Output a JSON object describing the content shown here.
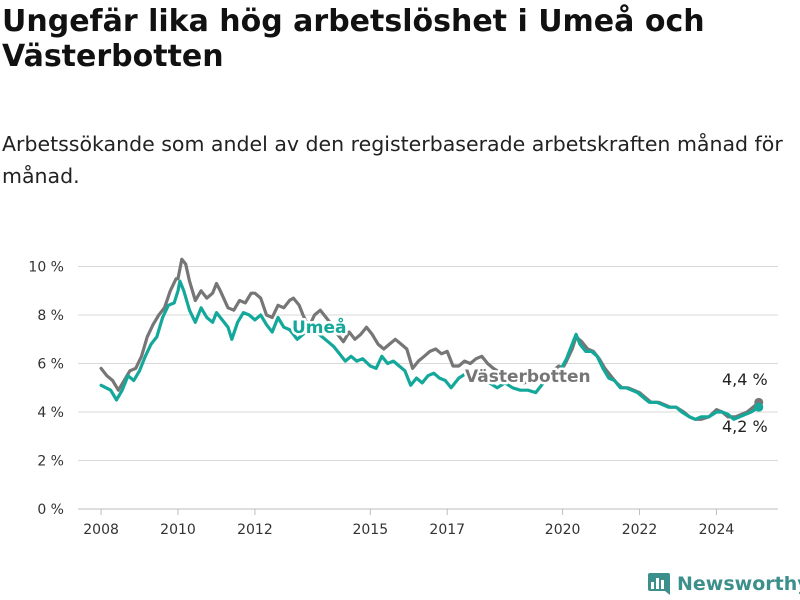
{
  "title": "Ungefär lika hög arbetslöshet i Umeå och Västerbotten",
  "subtitle": "Arbetssökande som andel av den registerbaserade arbetskraften månad för månad.",
  "brand": {
    "name": "Newsworthy",
    "icon": "bar-chart-logo-icon"
  },
  "colors": {
    "umea": "#14a89b",
    "vasterbotten": "#767676",
    "grid": "#d9d9d9"
  },
  "chart_data": {
    "type": "line",
    "x_ticks": [
      "2008",
      "2010",
      "2012",
      "2015",
      "2017",
      "2020",
      "2022",
      "2024"
    ],
    "y_ticks": [
      "0 %",
      "2 %",
      "4 %",
      "6 %",
      "8 %",
      "10 %"
    ],
    "ylim": [
      0,
      10.6
    ],
    "grid": true,
    "series": [
      {
        "name": "Umeå",
        "end_label": "4,2 %",
        "points": [
          [
            2008.0,
            5.1
          ],
          [
            2008.25,
            4.9
          ],
          [
            2008.4,
            4.5
          ],
          [
            2008.55,
            4.9
          ],
          [
            2008.7,
            5.5
          ],
          [
            2008.85,
            5.3
          ],
          [
            2009.0,
            5.7
          ],
          [
            2009.15,
            6.3
          ],
          [
            2009.3,
            6.8
          ],
          [
            2009.45,
            7.1
          ],
          [
            2009.6,
            7.9
          ],
          [
            2009.75,
            8.4
          ],
          [
            2009.9,
            8.5
          ],
          [
            2010.0,
            9.0
          ],
          [
            2010.05,
            9.4
          ],
          [
            2010.15,
            9.0
          ],
          [
            2010.3,
            8.2
          ],
          [
            2010.45,
            7.7
          ],
          [
            2010.6,
            8.3
          ],
          [
            2010.75,
            7.9
          ],
          [
            2010.9,
            7.7
          ],
          [
            2011.0,
            8.1
          ],
          [
            2011.15,
            7.8
          ],
          [
            2011.3,
            7.5
          ],
          [
            2011.4,
            7.0
          ],
          [
            2011.55,
            7.7
          ],
          [
            2011.7,
            8.1
          ],
          [
            2011.85,
            8.0
          ],
          [
            2012.0,
            7.8
          ],
          [
            2012.15,
            8.0
          ],
          [
            2012.3,
            7.6
          ],
          [
            2012.45,
            7.3
          ],
          [
            2012.6,
            7.9
          ],
          [
            2012.75,
            7.5
          ],
          [
            2012.9,
            7.4
          ],
          [
            2013.0,
            7.2
          ],
          [
            2013.1,
            7.0
          ],
          [
            2013.25,
            7.2
          ],
          [
            2013.45,
            7.6
          ],
          [
            2013.6,
            7.3
          ],
          [
            2013.75,
            7.1
          ],
          [
            2013.9,
            6.9
          ],
          [
            2014.05,
            6.7
          ],
          [
            2014.2,
            6.4
          ],
          [
            2014.35,
            6.1
          ],
          [
            2014.5,
            6.3
          ],
          [
            2014.65,
            6.1
          ],
          [
            2014.8,
            6.2
          ],
          [
            2015.0,
            5.9
          ],
          [
            2015.15,
            5.8
          ],
          [
            2015.3,
            6.3
          ],
          [
            2015.45,
            6.0
          ],
          [
            2015.6,
            6.1
          ],
          [
            2015.75,
            5.9
          ],
          [
            2015.9,
            5.7
          ],
          [
            2016.05,
            5.1
          ],
          [
            2016.2,
            5.4
          ],
          [
            2016.35,
            5.2
          ],
          [
            2016.5,
            5.5
          ],
          [
            2016.65,
            5.6
          ],
          [
            2016.8,
            5.4
          ],
          [
            2016.95,
            5.3
          ],
          [
            2017.1,
            5.0
          ],
          [
            2017.3,
            5.4
          ],
          [
            2017.5,
            5.6
          ],
          [
            2017.7,
            5.5
          ],
          [
            2017.9,
            5.3
          ],
          [
            2018.1,
            5.2
          ],
          [
            2018.3,
            5.0
          ],
          [
            2018.5,
            5.2
          ],
          [
            2018.7,
            5.0
          ],
          [
            2018.9,
            4.9
          ],
          [
            2019.1,
            4.9
          ],
          [
            2019.3,
            4.8
          ],
          [
            2019.5,
            5.2
          ],
          [
            2019.7,
            5.5
          ],
          [
            2019.85,
            5.6
          ],
          [
            2020.0,
            5.9
          ],
          [
            2020.1,
            6.2
          ],
          [
            2020.25,
            6.8
          ],
          [
            2020.35,
            7.2
          ],
          [
            2020.45,
            6.8
          ],
          [
            2020.6,
            6.5
          ],
          [
            2020.75,
            6.5
          ],
          [
            2020.9,
            6.3
          ],
          [
            2021.05,
            5.8
          ],
          [
            2021.2,
            5.4
          ],
          [
            2021.35,
            5.3
          ],
          [
            2021.5,
            5.0
          ],
          [
            2021.65,
            5.0
          ],
          [
            2021.8,
            4.9
          ],
          [
            2021.95,
            4.8
          ],
          [
            2022.1,
            4.6
          ],
          [
            2022.25,
            4.4
          ],
          [
            2022.45,
            4.4
          ],
          [
            2022.6,
            4.3
          ],
          [
            2022.75,
            4.2
          ],
          [
            2022.95,
            4.2
          ],
          [
            2023.1,
            4.0
          ],
          [
            2023.3,
            3.8
          ],
          [
            2023.45,
            3.7
          ],
          [
            2023.6,
            3.8
          ],
          [
            2023.8,
            3.8
          ],
          [
            2024.0,
            4.0
          ],
          [
            2024.15,
            4.0
          ],
          [
            2024.3,
            3.9
          ],
          [
            2024.45,
            3.7
          ],
          [
            2024.6,
            3.8
          ],
          [
            2024.75,
            3.9
          ],
          [
            2024.9,
            4.0
          ],
          [
            2025.1,
            4.2
          ]
        ]
      },
      {
        "name": "Västerbotten",
        "end_label": "4,4 %",
        "points": [
          [
            2008.0,
            5.8
          ],
          [
            2008.15,
            5.5
          ],
          [
            2008.3,
            5.3
          ],
          [
            2008.45,
            4.9
          ],
          [
            2008.6,
            5.3
          ],
          [
            2008.75,
            5.7
          ],
          [
            2008.9,
            5.8
          ],
          [
            2009.05,
            6.3
          ],
          [
            2009.2,
            7.1
          ],
          [
            2009.35,
            7.6
          ],
          [
            2009.5,
            8.0
          ],
          [
            2009.65,
            8.3
          ],
          [
            2009.8,
            9.0
          ],
          [
            2009.95,
            9.5
          ],
          [
            2010.0,
            9.5
          ],
          [
            2010.1,
            10.3
          ],
          [
            2010.2,
            10.1
          ],
          [
            2010.3,
            9.4
          ],
          [
            2010.45,
            8.6
          ],
          [
            2010.6,
            9.0
          ],
          [
            2010.75,
            8.7
          ],
          [
            2010.9,
            8.9
          ],
          [
            2011.0,
            9.3
          ],
          [
            2011.1,
            9.0
          ],
          [
            2011.3,
            8.3
          ],
          [
            2011.45,
            8.2
          ],
          [
            2011.6,
            8.6
          ],
          [
            2011.75,
            8.5
          ],
          [
            2011.9,
            8.9
          ],
          [
            2012.0,
            8.9
          ],
          [
            2012.15,
            8.7
          ],
          [
            2012.3,
            8.0
          ],
          [
            2012.45,
            7.9
          ],
          [
            2012.6,
            8.4
          ],
          [
            2012.75,
            8.3
          ],
          [
            2012.9,
            8.6
          ],
          [
            2013.0,
            8.7
          ],
          [
            2013.15,
            8.4
          ],
          [
            2013.25,
            8.0
          ],
          [
            2013.4,
            7.5
          ],
          [
            2013.55,
            8.0
          ],
          [
            2013.7,
            8.2
          ],
          [
            2013.85,
            7.9
          ],
          [
            2014.0,
            7.6
          ],
          [
            2014.15,
            7.2
          ],
          [
            2014.3,
            6.9
          ],
          [
            2014.45,
            7.3
          ],
          [
            2014.6,
            7.0
          ],
          [
            2014.75,
            7.2
          ],
          [
            2014.9,
            7.5
          ],
          [
            2015.05,
            7.2
          ],
          [
            2015.2,
            6.8
          ],
          [
            2015.35,
            6.6
          ],
          [
            2015.5,
            6.8
          ],
          [
            2015.65,
            7.0
          ],
          [
            2015.8,
            6.8
          ],
          [
            2015.95,
            6.6
          ],
          [
            2016.1,
            5.8
          ],
          [
            2016.25,
            6.1
          ],
          [
            2016.4,
            6.3
          ],
          [
            2016.55,
            6.5
          ],
          [
            2016.7,
            6.6
          ],
          [
            2016.85,
            6.4
          ],
          [
            2017.0,
            6.5
          ],
          [
            2017.15,
            5.9
          ],
          [
            2017.3,
            5.9
          ],
          [
            2017.45,
            6.1
          ],
          [
            2017.6,
            6.0
          ],
          [
            2017.75,
            6.2
          ],
          [
            2017.9,
            6.3
          ],
          [
            2018.05,
            6.0
          ],
          [
            2018.2,
            5.8
          ],
          [
            2018.4,
            5.6
          ],
          [
            2018.6,
            5.4
          ],
          [
            2018.8,
            5.3
          ],
          [
            2019.0,
            5.2
          ],
          [
            2019.2,
            5.3
          ],
          [
            2019.4,
            5.5
          ],
          [
            2019.6,
            5.6
          ],
          [
            2019.75,
            5.7
          ],
          [
            2019.9,
            5.9
          ],
          [
            2020.0,
            5.8
          ],
          [
            2020.1,
            6.1
          ],
          [
            2020.25,
            6.6
          ],
          [
            2020.35,
            7.1
          ],
          [
            2020.5,
            6.9
          ],
          [
            2020.65,
            6.6
          ],
          [
            2020.8,
            6.5
          ],
          [
            2020.95,
            6.2
          ],
          [
            2021.1,
            5.8
          ],
          [
            2021.25,
            5.5
          ],
          [
            2021.4,
            5.2
          ],
          [
            2021.55,
            5.0
          ],
          [
            2021.7,
            5.0
          ],
          [
            2021.85,
            4.9
          ],
          [
            2022.0,
            4.8
          ],
          [
            2022.15,
            4.6
          ],
          [
            2022.3,
            4.4
          ],
          [
            2022.5,
            4.4
          ],
          [
            2022.65,
            4.3
          ],
          [
            2022.8,
            4.2
          ],
          [
            2022.95,
            4.2
          ],
          [
            2023.15,
            4.0
          ],
          [
            2023.3,
            3.8
          ],
          [
            2023.45,
            3.7
          ],
          [
            2023.6,
            3.7
          ],
          [
            2023.8,
            3.8
          ],
          [
            2024.0,
            4.1
          ],
          [
            2024.15,
            4.0
          ],
          [
            2024.3,
            3.8
          ],
          [
            2024.5,
            3.8
          ],
          [
            2024.65,
            3.9
          ],
          [
            2024.8,
            4.0
          ],
          [
            2024.95,
            4.2
          ],
          [
            2025.1,
            4.4
          ]
        ]
      }
    ]
  }
}
